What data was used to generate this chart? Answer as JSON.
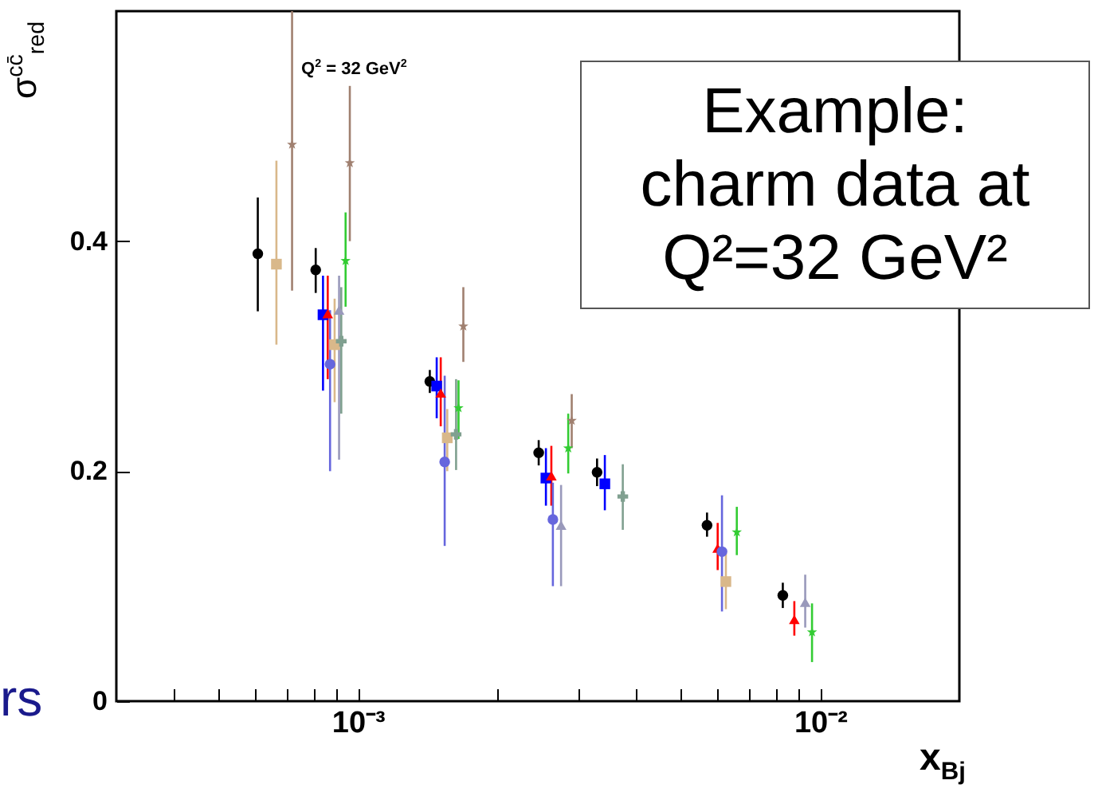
{
  "chart_data": {
    "type": "scatter",
    "xlabel": "x$_{Bj}$",
    "ylabel": "σ$^{cc̄}$$_{red}$",
    "annotations": [
      "Q$^{2}$ = 32 GeV$^{2}$",
      "Example:\ncharm data at\nQ²=32 GeV²",
      "rs"
    ],
    "log": "x",
    "grid": false,
    "legend": false,
    "xlim": [
      0.0003,
      0.02
    ],
    "xticks": [
      {
        "value": 0.0004,
        "label": null
      },
      {
        "value": 0.0005,
        "label": null
      },
      {
        "value": 0.0006,
        "label": null
      },
      {
        "value": 0.0007,
        "label": null
      },
      {
        "value": 0.0008,
        "label": null
      },
      {
        "value": 0.0009,
        "label": null
      },
      {
        "value": 0.001,
        "label": "10⁻³"
      },
      {
        "value": 0.002,
        "label": null
      },
      {
        "value": 0.003,
        "label": null
      },
      {
        "value": 0.004,
        "label": null
      },
      {
        "value": 0.005,
        "label": null
      },
      {
        "value": 0.006,
        "label": null
      },
      {
        "value": 0.007,
        "label": null
      },
      {
        "value": 0.008,
        "label": null
      },
      {
        "value": 0.009,
        "label": null
      },
      {
        "value": 0.01,
        "label": "10⁻²"
      }
    ],
    "ylim": [
      0,
      0.6
    ],
    "yticks": [
      0,
      0.2,
      0.4
    ],
    "series": [
      {
        "color": "#000000",
        "marker": "circle",
        "x": [
          0.000607,
          0.00081,
          0.00143,
          0.00246,
          0.00329,
          0.00569,
          0.0083
        ],
        "values": [
          0.389,
          0.375,
          0.278,
          0.216,
          0.199,
          0.153,
          0.092
        ],
        "errors": [
          [
            0.339,
            0.438
          ],
          [
            0.355,
            0.394
          ],
          [
            0.268,
            0.288
          ],
          [
            0.205,
            0.227
          ],
          [
            0.187,
            0.211
          ],
          [
            0.143,
            0.164
          ],
          [
            0.081,
            0.103
          ]
        ]
      },
      {
        "color": "#0000ff",
        "marker": "square",
        "x": [
          0.00084,
          0.00148,
          0.00255,
          0.00342
        ],
        "values": [
          0.336,
          0.274,
          0.194,
          0.189
        ],
        "errors": [
          [
            0.27,
            0.37
          ],
          [
            0.246,
            0.299
          ],
          [
            0.17,
            0.22
          ],
          [
            0.166,
            0.214
          ]
        ]
      },
      {
        "color": "#ff0000",
        "marker": "triangle",
        "x": [
          0.00086,
          0.00151,
          0.00262,
          0.006,
          0.00879
        ],
        "values": [
          0.337,
          0.268,
          0.196,
          0.133,
          0.071
        ],
        "errors": [
          [
            0.28,
            0.37
          ],
          [
            0.239,
            0.299
          ],
          [
            0.17,
            0.222
          ],
          [
            0.114,
            0.155
          ],
          [
            0.057,
            0.087
          ]
        ]
      },
      {
        "color": "#6666dd",
        "marker": "circle",
        "x": [
          0.00087,
          0.00154,
          0.00264,
          0.00613
        ],
        "values": [
          0.293,
          0.208,
          0.158,
          0.13
        ],
        "errors": [
          [
            0.2,
            0.34
          ],
          [
            0.135,
            0.283
          ],
          [
            0.1,
            0.19
          ],
          [
            0.078,
            0.179
          ]
        ]
      },
      {
        "color": "#d9b88a",
        "marker": "square",
        "x": [
          0.000666,
          0.00089,
          0.00156,
          0.00625
        ],
        "values": [
          0.38,
          0.31,
          0.229,
          0.104
        ],
        "errors": [
          [
            0.31,
            0.47
          ],
          [
            0.26,
            0.35
          ],
          [
            0.2,
            0.254
          ],
          [
            0.08,
            0.13
          ]
        ]
      },
      {
        "color": "#9999bb",
        "marker": "triangle",
        "x": [
          0.00091,
          0.00275,
          0.00928
        ],
        "values": [
          0.34,
          0.153,
          0.086
        ],
        "errors": [
          [
            0.21,
            0.37
          ],
          [
            0.1,
            0.188
          ],
          [
            0.064,
            0.11
          ]
        ]
      },
      {
        "color": "#33cc33",
        "marker": "star",
        "x": [
          0.00094,
          0.00165,
          0.00285,
          0.0066,
          0.0096
        ],
        "values": [
          0.383,
          0.255,
          0.22,
          0.147,
          0.06
        ],
        "errors": [
          [
            0.343,
            0.425
          ],
          [
            0.228,
            0.279
          ],
          [
            0.198,
            0.25
          ],
          [
            0.127,
            0.169
          ],
          [
            0.034,
            0.085
          ]
        ]
      },
      {
        "color": "#a08070",
        "marker": "star",
        "x": [
          0.00072,
          0.00096,
          0.00169,
          0.0029
        ],
        "values": [
          0.484,
          0.468,
          0.326,
          0.244
        ],
        "errors": [
          [
            0.357,
            0.6
          ],
          [
            0.4,
            0.535
          ],
          [
            0.295,
            0.36
          ],
          [
            0.22,
            0.267
          ]
        ]
      },
      {
        "color": "#80a090",
        "marker": "cross",
        "x": [
          0.00092,
          0.00163,
          0.00374
        ],
        "values": [
          0.313,
          0.232,
          0.178
        ],
        "errors": [
          [
            0.25,
            0.36
          ],
          [
            0.201,
            0.28
          ],
          [
            0.149,
            0.206
          ]
        ]
      }
    ]
  }
}
